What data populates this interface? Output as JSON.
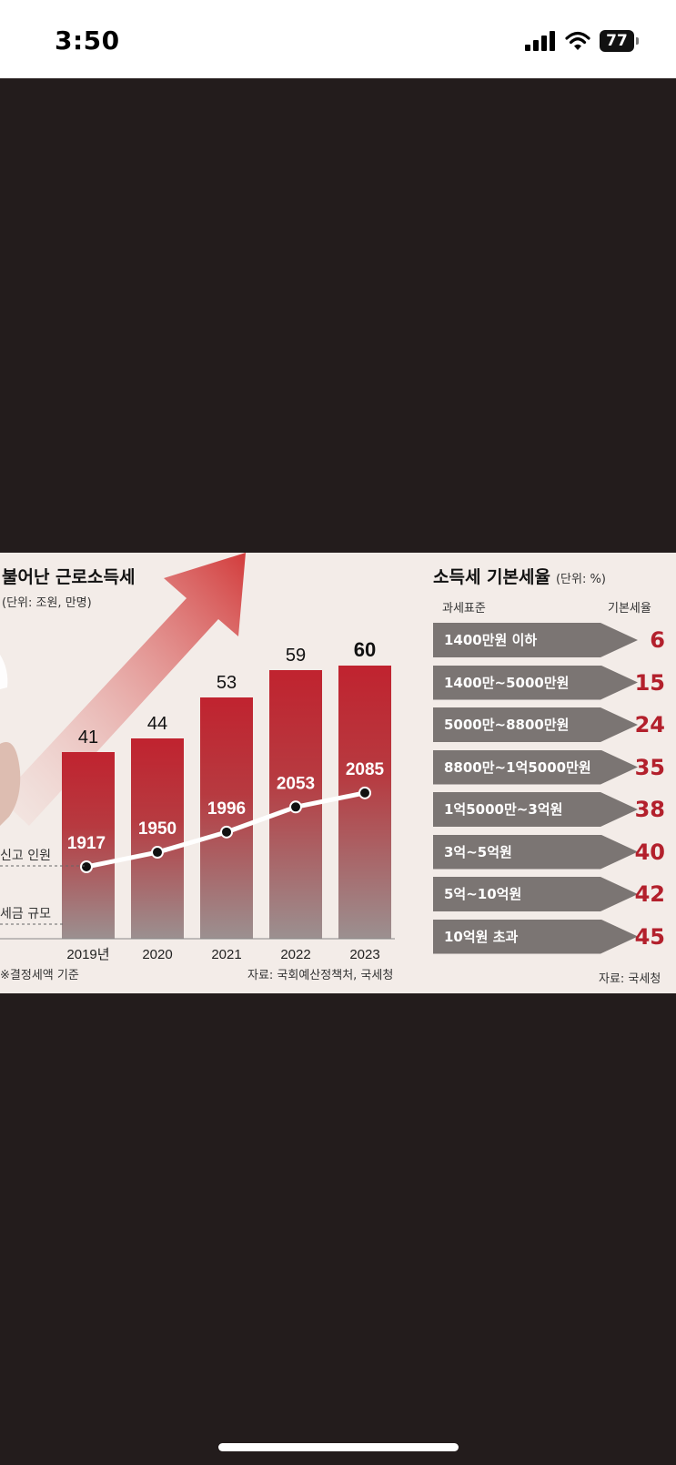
{
  "status_bar": {
    "time": "3:50",
    "battery": "77"
  },
  "left_chart": {
    "title": "불어난 근로소득세",
    "unit": "(단위: 조원, 만명)",
    "legend": {
      "filers": "신고 인원",
      "tax": "세금 규모"
    },
    "footnote": "※결정세액 기준",
    "source": "자료: 국회예산정책처, 국세청"
  },
  "right_table": {
    "title": "소득세 기본세율",
    "unit": "(단위: %)",
    "col_bracket": "과세표준",
    "col_rate": "기본세율",
    "rows": [
      {
        "bracket": "1400만원 이하",
        "rate": "6"
      },
      {
        "bracket": "1400만~5000만원",
        "rate": "15"
      },
      {
        "bracket": "5000만~8800만원",
        "rate": "24"
      },
      {
        "bracket": "8800만~1억5000만원",
        "rate": "35"
      },
      {
        "bracket": "1억5000만~3억원",
        "rate": "38"
      },
      {
        "bracket": "3억~5억원",
        "rate": "40"
      },
      {
        "bracket": "5억~10억원",
        "rate": "42"
      },
      {
        "bracket": "10억원 초과",
        "rate": "45"
      }
    ],
    "source": "자료: 국세청"
  },
  "chart_data": {
    "type": "bar",
    "title": "불어난 근로소득세",
    "unit": "(단위: 조원, 만명)",
    "categories": [
      "2019년",
      "2020",
      "2021",
      "2022",
      "2023"
    ],
    "series": [
      {
        "name": "세금 규모",
        "type": "bar",
        "values": [
          41,
          44,
          53,
          59,
          60
        ],
        "color": "#c0232f"
      },
      {
        "name": "신고 인원",
        "type": "line",
        "values": [
          1917,
          1950,
          1996,
          2053,
          2085
        ],
        "color": "#ffffff"
      }
    ],
    "highlight_last": true
  }
}
